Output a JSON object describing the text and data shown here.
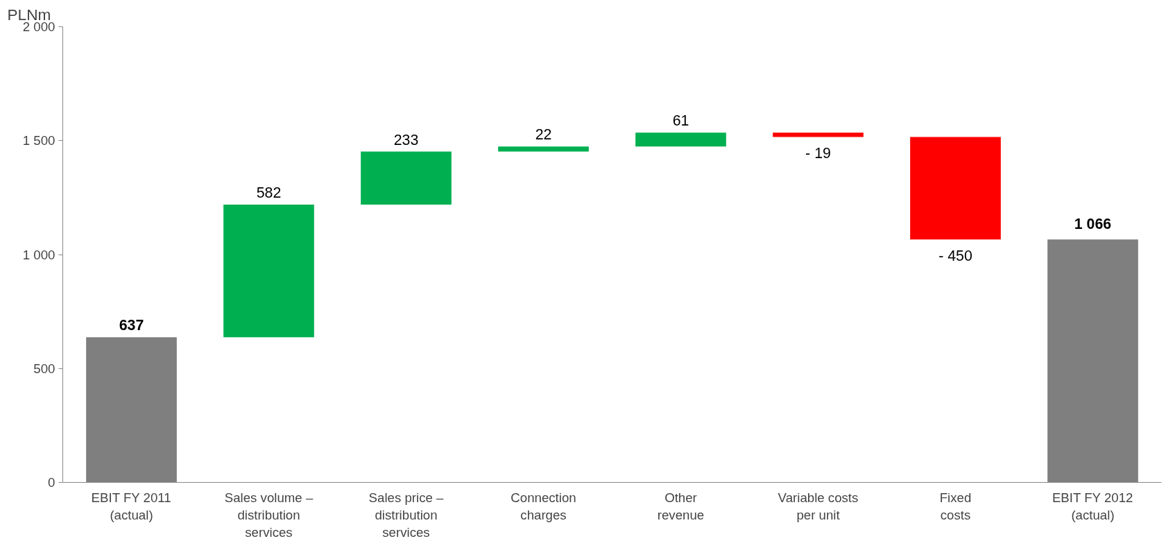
{
  "chart_data": {
    "type": "bar",
    "ylabel": "PLNm",
    "categories": [
      "EBIT FY 2011\n(actual)",
      "Sales volume –\ndistribution\nservices",
      "Sales price –\ndistribution\nservices",
      "Connection\ncharges",
      "Other\nrevenue",
      "Variable costs\nper unit",
      "Fixed\ncosts",
      "EBIT FY 2012\n(actual)"
    ],
    "values": [
      637,
      582,
      233,
      22,
      61,
      -19,
      -450,
      1066
    ],
    "base": [
      0,
      637,
      1219,
      1452,
      1474,
      1535,
      1516,
      0
    ],
    "colors": [
      "#7f7f7f",
      "#00b050",
      "#00b050",
      "#00b050",
      "#00b050",
      "#ff0000",
      "#ff0000",
      "#7f7f7f"
    ],
    "value_labels": [
      "637",
      "582",
      "233",
      "22",
      "61",
      "- 19",
      "- 450",
      "1 066"
    ],
    "ylim": [
      0,
      2000
    ],
    "yticks": [
      {
        "value": 0,
        "label": "0"
      },
      {
        "value": 500,
        "label": "500"
      },
      {
        "value": 1000,
        "label": "1 000"
      },
      {
        "value": 1500,
        "label": "1 500"
      },
      {
        "value": 2000,
        "label": "2 000"
      }
    ],
    "grid": false
  }
}
